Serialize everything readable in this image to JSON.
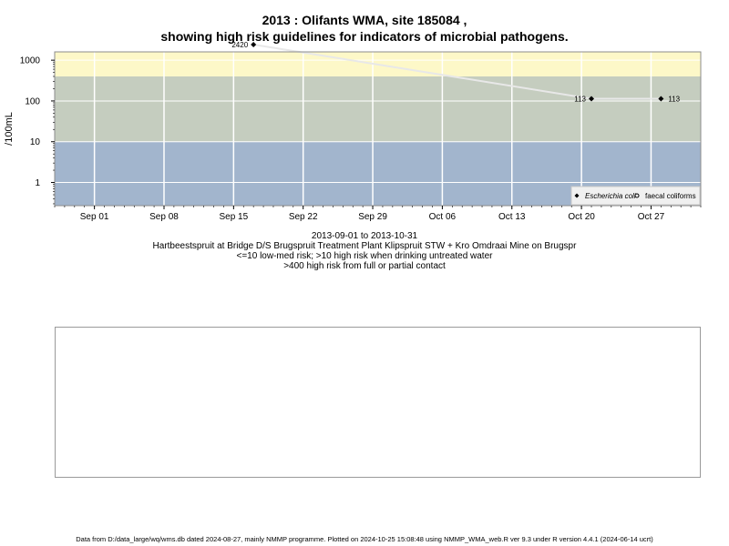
{
  "title_lines": [
    "2013 : Olifants WMA, site 185084 ,",
    "showing high risk guidelines for indicators of microbial pathogens."
  ],
  "subtitle_lines": [
    "2013-09-01 to 2013-10-31",
    "Hartbeestspruit at Bridge D/S Brugspruit Treatment Plant Klipspruit STW + Kro Omdraai Mine on Brugspr",
    "<=10 low-med risk; >10 high risk when drinking untreated water",
    ">400 high risk from full or partial contact"
  ],
  "footer": "Data from D:/data_large/wq/wms.db dated 2024-08-27, mainly NMMP programme. Plotted on 2024-10-25 15:08:48 using NMMP_WMA_web.R ver 9.3 under R version 4.4.1 (2024-06-14 ucrt)",
  "chart_data": {
    "type": "line",
    "xlabel": "",
    "ylabel": "/100mL",
    "y_scale": "log",
    "x_range": [
      "2013-08-28",
      "2013-11-01"
    ],
    "y_range_log": [
      0.27,
      1600
    ],
    "x_ticks": [
      {
        "date": "2013-09-01",
        "label": "Sep 01"
      },
      {
        "date": "2013-09-08",
        "label": "Sep 08"
      },
      {
        "date": "2013-09-15",
        "label": "Sep 15"
      },
      {
        "date": "2013-09-22",
        "label": "Sep 22"
      },
      {
        "date": "2013-09-29",
        "label": "Sep 29"
      },
      {
        "date": "2013-10-06",
        "label": "Oct 06"
      },
      {
        "date": "2013-10-13",
        "label": "Oct 13"
      },
      {
        "date": "2013-10-20",
        "label": "Oct 20"
      },
      {
        "date": "2013-10-27",
        "label": "Oct 27"
      }
    ],
    "y_ticks": [
      {
        "value": 1,
        "label": "1"
      },
      {
        "value": 10,
        "label": "10"
      },
      {
        "value": 100,
        "label": "100"
      },
      {
        "value": 1000,
        "label": "1000"
      }
    ],
    "risk_bands": [
      {
        "from": 0.27,
        "to": 10,
        "color": "#a2b5cd"
      },
      {
        "from": 10,
        "to": 400,
        "color": "#c5cdbf"
      },
      {
        "from": 400,
        "to": 1600,
        "color": "#fdf8c8"
      }
    ],
    "grid": true,
    "legend_position": "bottom-right",
    "series": [
      {
        "name": "Escherichia coli",
        "marker": "filled-diamond",
        "color": "#000000",
        "line_color": "#e8e8e8",
        "points": [
          {
            "x": "2013-09-17",
            "y": 2420,
            "label": "2420"
          },
          {
            "x": "2013-10-21",
            "y": 113,
            "label": "113"
          },
          {
            "x": "2013-10-28",
            "y": 113,
            "label": "113"
          }
        ]
      },
      {
        "name": "faecal coliforms",
        "marker": "open-circle",
        "color": "#000000",
        "points": []
      }
    ]
  }
}
